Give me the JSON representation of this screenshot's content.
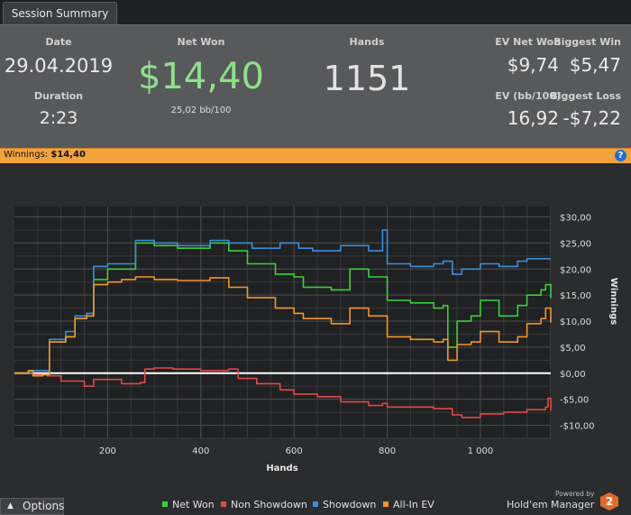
{
  "tab": {
    "label": "Session Summary"
  },
  "summary": {
    "date_label": "Date",
    "date_value": "29.04.2019",
    "duration_label": "Duration",
    "duration_value": "2:23",
    "netwon_label": "Net Won",
    "netwon_value": "$14,40",
    "netwon_sub": "25,02 bb/100",
    "hands_label": "Hands",
    "hands_value": "1151",
    "evnet_label": "EV Net Won",
    "evnet_value": "$9,74",
    "bigwin_label": "Biggest Win",
    "bigwin_value": "$5,47",
    "evbb_label": "EV (bb/100)",
    "evbb_value": "16,92",
    "bigloss_label": "Biggest Loss",
    "bigloss_value": "-$7,22",
    "netwon_color": "#8ee08a"
  },
  "winnings_bar": {
    "label": "Winnings:",
    "value": "$14,40",
    "help": "?"
  },
  "options": {
    "label": "Options",
    "arrow": "▲"
  },
  "branding": {
    "powered": "Powered by",
    "name": "Hold'em Manager",
    "logo": "2"
  },
  "chart_data": {
    "type": "line",
    "xlabel": "Hands",
    "ylabel": "Winnings",
    "xlim": [
      0,
      1151
    ],
    "ylim": [
      -12.5,
      32
    ],
    "xticks": [
      200,
      400,
      600,
      800,
      1000
    ],
    "xtick_labels": [
      "200",
      "400",
      "600",
      "800",
      "1 000"
    ],
    "yticks": [
      30,
      25,
      20,
      15,
      10,
      5,
      0,
      -5,
      -10
    ],
    "ytick_labels": [
      "$30,00",
      "$25,00",
      "$20,00",
      "$15,00",
      "$10,00",
      "$5,00",
      "$0,00",
      "-$5,00",
      "-$10,00"
    ],
    "series": [
      {
        "name": "Net Won",
        "color": "#3ccf3c",
        "points": [
          [
            0,
            0
          ],
          [
            30,
            0.5
          ],
          [
            40,
            -0.5
          ],
          [
            60,
            -0.3
          ],
          [
            75,
            6
          ],
          [
            110,
            7
          ],
          [
            130,
            10.5
          ],
          [
            155,
            11
          ],
          [
            170,
            18
          ],
          [
            200,
            20
          ],
          [
            260,
            25
          ],
          [
            300,
            24.5
          ],
          [
            350,
            24
          ],
          [
            420,
            25
          ],
          [
            460,
            23.5
          ],
          [
            500,
            21
          ],
          [
            560,
            19
          ],
          [
            600,
            18.5
          ],
          [
            620,
            16.5
          ],
          [
            680,
            16
          ],
          [
            720,
            20
          ],
          [
            760,
            18.5
          ],
          [
            790,
            18.5
          ],
          [
            800,
            14
          ],
          [
            850,
            13.5
          ],
          [
            900,
            12.5
          ],
          [
            920,
            13
          ],
          [
            930,
            5
          ],
          [
            950,
            10
          ],
          [
            980,
            11
          ],
          [
            1000,
            14
          ],
          [
            1040,
            11
          ],
          [
            1080,
            13
          ],
          [
            1100,
            15
          ],
          [
            1130,
            16
          ],
          [
            1140,
            17
          ],
          [
            1151,
            14.4
          ]
        ]
      },
      {
        "name": "Non Showdown",
        "color": "#e04848",
        "points": [
          [
            0,
            0
          ],
          [
            40,
            -0.3
          ],
          [
            70,
            -0.5
          ],
          [
            100,
            -1.5
          ],
          [
            150,
            -2.5
          ],
          [
            170,
            -1.2
          ],
          [
            230,
            -2
          ],
          [
            270,
            -1.8
          ],
          [
            280,
            0.8
          ],
          [
            300,
            1
          ],
          [
            340,
            0.8
          ],
          [
            400,
            0.5
          ],
          [
            460,
            0.8
          ],
          [
            480,
            -1
          ],
          [
            520,
            -2
          ],
          [
            570,
            -3.2
          ],
          [
            600,
            -4
          ],
          [
            650,
            -4.5
          ],
          [
            700,
            -5.5
          ],
          [
            760,
            -6.2
          ],
          [
            790,
            -5.8
          ],
          [
            800,
            -6.5
          ],
          [
            850,
            -6.5
          ],
          [
            900,
            -6.8
          ],
          [
            940,
            -8
          ],
          [
            960,
            -8.5
          ],
          [
            1000,
            -7.8
          ],
          [
            1050,
            -7.5
          ],
          [
            1100,
            -7
          ],
          [
            1140,
            -6.5
          ],
          [
            1145,
            -4.8
          ],
          [
            1151,
            -7.2
          ]
        ]
      },
      {
        "name": "Showdown",
        "color": "#3a8fd8",
        "points": [
          [
            0,
            0
          ],
          [
            40,
            0.5
          ],
          [
            75,
            6.5
          ],
          [
            110,
            8
          ],
          [
            130,
            11
          ],
          [
            155,
            11.5
          ],
          [
            170,
            20.5
          ],
          [
            200,
            21
          ],
          [
            260,
            25.5
          ],
          [
            300,
            25
          ],
          [
            350,
            24.5
          ],
          [
            420,
            25.5
          ],
          [
            460,
            25
          ],
          [
            510,
            24
          ],
          [
            570,
            25
          ],
          [
            610,
            24
          ],
          [
            640,
            23.5
          ],
          [
            700,
            24.5
          ],
          [
            760,
            23.5
          ],
          [
            790,
            27.5
          ],
          [
            800,
            21
          ],
          [
            850,
            20.5
          ],
          [
            900,
            21
          ],
          [
            920,
            21.5
          ],
          [
            940,
            19
          ],
          [
            960,
            20
          ],
          [
            1000,
            21
          ],
          [
            1040,
            20.5
          ],
          [
            1080,
            21.5
          ],
          [
            1100,
            22
          ],
          [
            1151,
            22
          ]
        ]
      },
      {
        "name": "All-In EV",
        "color": "#f0962c",
        "points": [
          [
            0,
            0
          ],
          [
            30,
            0.5
          ],
          [
            40,
            -0.5
          ],
          [
            60,
            -0.3
          ],
          [
            75,
            6
          ],
          [
            110,
            7
          ],
          [
            130,
            10.5
          ],
          [
            155,
            11
          ],
          [
            170,
            17
          ],
          [
            200,
            17.5
          ],
          [
            230,
            18
          ],
          [
            260,
            18.5
          ],
          [
            300,
            18
          ],
          [
            350,
            17.8
          ],
          [
            420,
            18.3
          ],
          [
            460,
            16.5
          ],
          [
            500,
            14.5
          ],
          [
            560,
            12.5
          ],
          [
            600,
            11.5
          ],
          [
            620,
            10.5
          ],
          [
            680,
            9.5
          ],
          [
            720,
            12.5
          ],
          [
            760,
            11
          ],
          [
            790,
            11
          ],
          [
            800,
            7
          ],
          [
            850,
            6.5
          ],
          [
            900,
            6
          ],
          [
            920,
            6.5
          ],
          [
            930,
            2.5
          ],
          [
            950,
            5.5
          ],
          [
            980,
            6
          ],
          [
            1000,
            8
          ],
          [
            1040,
            6
          ],
          [
            1080,
            7
          ],
          [
            1100,
            9.5
          ],
          [
            1130,
            10.5
          ],
          [
            1140,
            12.5
          ],
          [
            1151,
            9.74
          ]
        ]
      }
    ],
    "legend": [
      "Net Won",
      "Non Showdown",
      "Showdown",
      "All-In EV"
    ]
  }
}
